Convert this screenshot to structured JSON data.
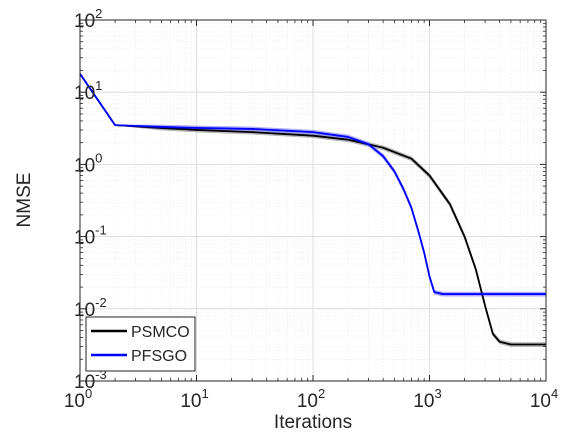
{
  "chart_data": {
    "type": "line",
    "xlabel": "Iterations",
    "ylabel": "NMSE",
    "xscale": "log",
    "yscale": "log",
    "xlim": [
      1,
      10000
    ],
    "ylim": [
      0.001,
      100
    ],
    "grid": true,
    "minor_grid": true,
    "legend_position": "bottom-left",
    "x_ticks": [
      {
        "value": 1,
        "base": "10",
        "exp": "0"
      },
      {
        "value": 10,
        "base": "10",
        "exp": "1"
      },
      {
        "value": 100,
        "base": "10",
        "exp": "2"
      },
      {
        "value": 1000,
        "base": "10",
        "exp": "3"
      },
      {
        "value": 10000,
        "base": "10",
        "exp": "4"
      }
    ],
    "y_ticks": [
      {
        "value": 0.001,
        "base": "10",
        "exp": "-3"
      },
      {
        "value": 0.01,
        "base": "10",
        "exp": "-2"
      },
      {
        "value": 0.1,
        "base": "10",
        "exp": "-1"
      },
      {
        "value": 1,
        "base": "10",
        "exp": "0"
      },
      {
        "value": 10,
        "base": "10",
        "exp": "1"
      },
      {
        "value": 100,
        "base": "10",
        "exp": "2"
      }
    ],
    "series": [
      {
        "name": "PSMCO",
        "color": "#000000",
        "band_color": "#9a9a9a",
        "x": [
          1,
          2,
          5,
          10,
          30,
          100,
          200,
          400,
          700,
          1000,
          1500,
          2000,
          2500,
          3000,
          3500,
          4000,
          5000,
          7000,
          10000
        ],
        "y": [
          18,
          3.5,
          3.2,
          3.0,
          2.8,
          2.5,
          2.2,
          1.7,
          1.2,
          0.7,
          0.28,
          0.1,
          0.035,
          0.011,
          0.0045,
          0.0035,
          0.0032,
          0.0032,
          0.0032
        ]
      },
      {
        "name": "PFSGO",
        "color": "#0000ff",
        "band_color": "#8c8cff",
        "x": [
          1,
          2,
          5,
          10,
          30,
          100,
          200,
          300,
          400,
          500,
          600,
          700,
          800,
          900,
          1000,
          1100,
          1300,
          2000,
          5000,
          10000
        ],
        "y": [
          18,
          3.5,
          3.3,
          3.2,
          3.1,
          2.8,
          2.4,
          1.9,
          1.3,
          0.8,
          0.45,
          0.25,
          0.12,
          0.06,
          0.028,
          0.017,
          0.016,
          0.016,
          0.016,
          0.016
        ]
      }
    ]
  }
}
